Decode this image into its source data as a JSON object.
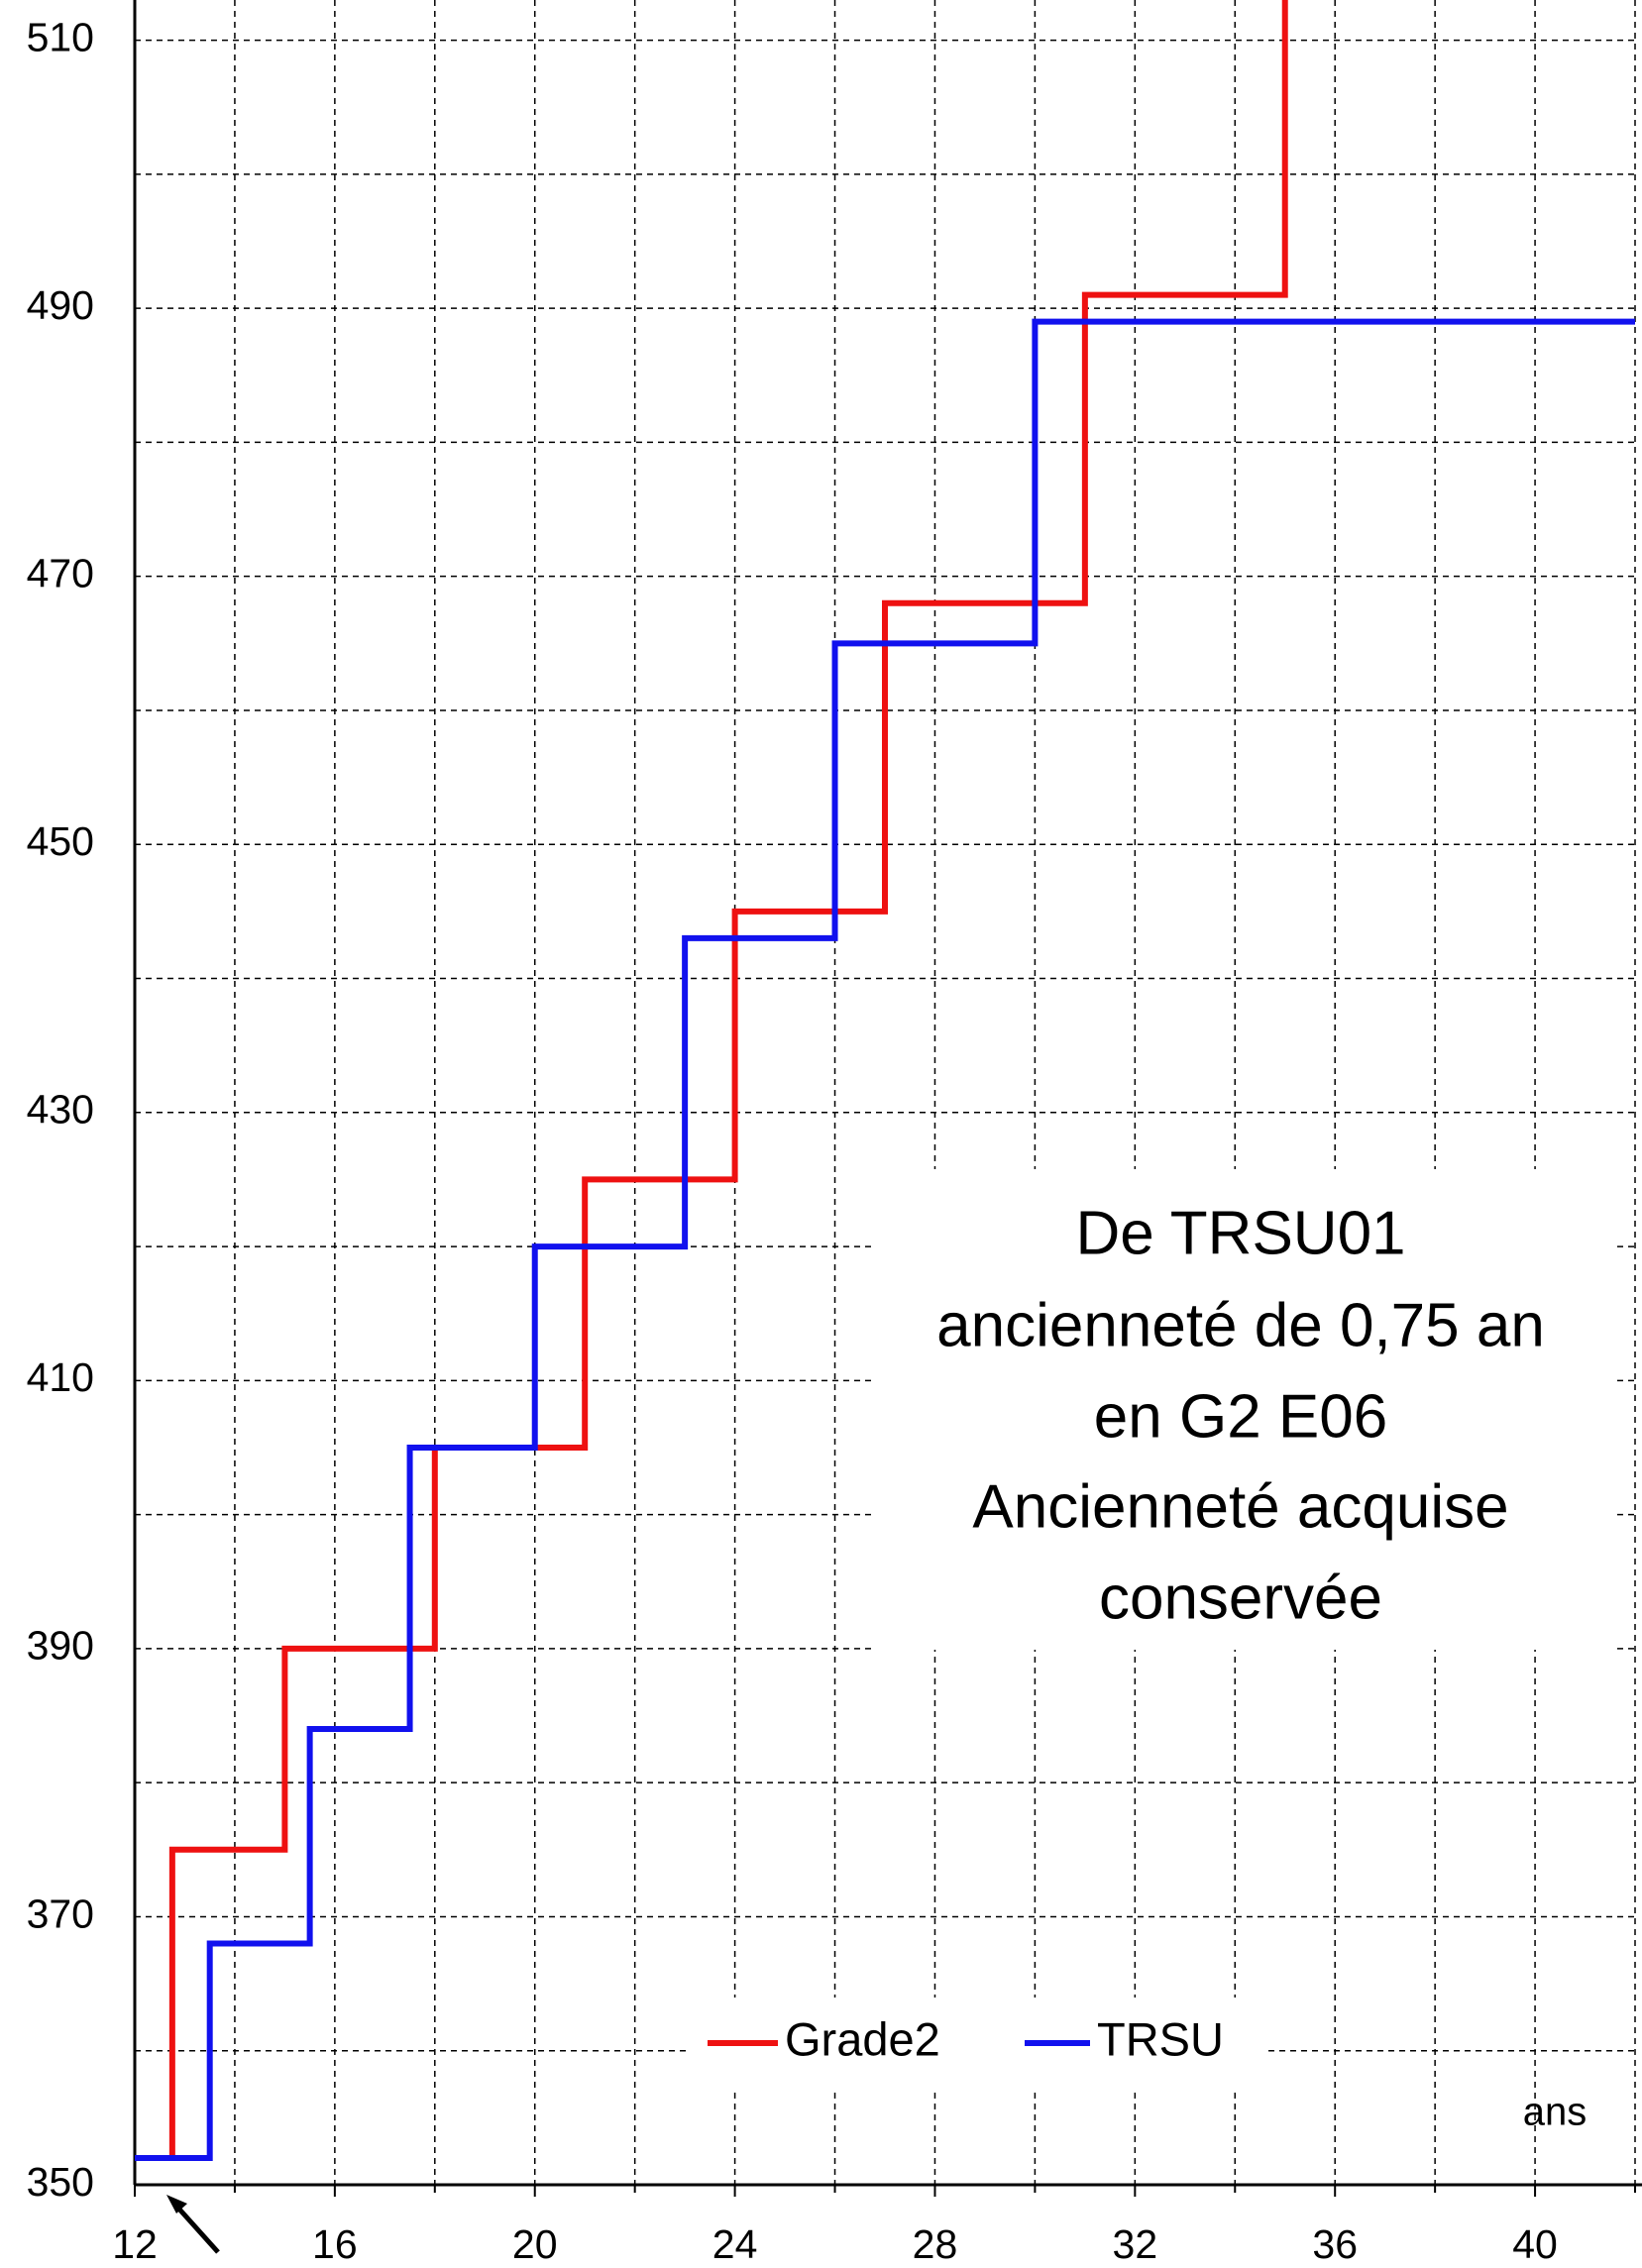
{
  "chart_data": {
    "type": "step",
    "annotation": [
      "De TRSU01",
      "ancienneté de 0,75 an",
      "en G2 E06",
      "Ancienneté acquise",
      "conservée"
    ],
    "xlabel": "ans",
    "xlim": [
      12,
      42
    ],
    "ylim": [
      350,
      513
    ],
    "xticks": [
      12,
      16,
      20,
      24,
      28,
      32,
      36,
      40
    ],
    "yticks": [
      350,
      370,
      390,
      410,
      430,
      450,
      470,
      490,
      510
    ],
    "xminorticks": [
      14,
      18,
      22,
      26,
      30,
      34,
      38,
      42
    ],
    "yminorticks": [
      360,
      380,
      400,
      420,
      440,
      460,
      480,
      500
    ],
    "grid": true,
    "series": [
      {
        "name": "Grade2",
        "color": "#ee1111",
        "x": [
          12.75,
          12.75,
          15,
          18,
          21,
          24,
          27,
          31,
          35
        ],
        "values": [
          352,
          375,
          390,
          405,
          425,
          445,
          468,
          491,
          515
        ]
      },
      {
        "name": "TRSU",
        "color": "#1111ee",
        "x": [
          12,
          13.5,
          15.5,
          17.5,
          20,
          23,
          26,
          30
        ],
        "values": [
          352,
          368,
          384,
          405,
          420,
          443,
          465,
          489
        ]
      }
    ]
  }
}
